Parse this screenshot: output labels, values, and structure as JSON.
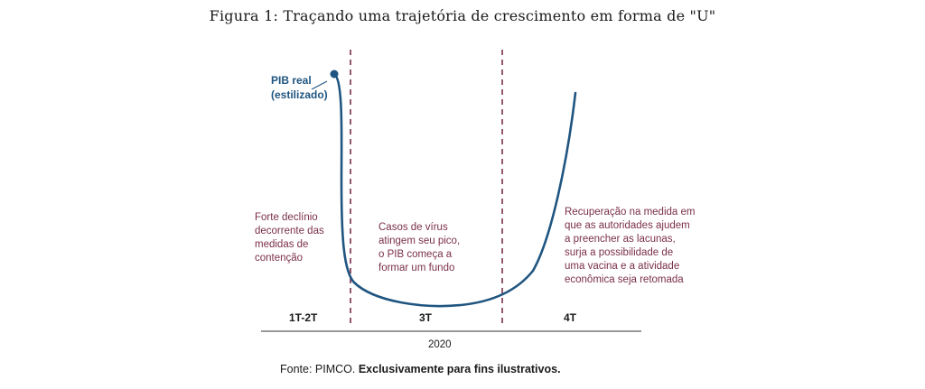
{
  "title": "Figura 1: Traçando uma trajetória de crescimento em forma de \"U\"",
  "chart_data": {
    "type": "line",
    "title": "Figura 1: Traçando uma trajetória de crescimento em forma de \"U\"",
    "xlabel": "2020",
    "ylabel": "",
    "x_ticks": [
      "1T-2T",
      "3T",
      "4T"
    ],
    "series": [
      {
        "name": "PIB real (estilizado)",
        "color": "#1f5580",
        "shape": "U",
        "note": "illustrative U-shaped curve, no numeric values shown"
      }
    ],
    "grid": false,
    "vertical_dividers": 2,
    "divider_color": "#7a2f4a"
  },
  "labels": {
    "series_label_line1": "PIB real",
    "series_label_line2": "(estilizado)",
    "annotation_left": [
      "Forte declínio",
      "decorrente das",
      "medidas de",
      "contenção"
    ],
    "annotation_middle": [
      "Casos de vírus",
      "atingem seu pico,",
      "o PIB começa a",
      "formar um fundo"
    ],
    "annotation_right": [
      "Recuperação na medida em",
      "que as autoridades ajudem",
      "a preencher as lacunas,",
      "surja a possibilidade de",
      "uma vacina e a atividade",
      "econômica seja retomada"
    ],
    "period_1": "1T-2T",
    "period_2": "3T",
    "period_3": "4T",
    "year": "2020"
  },
  "source": {
    "prefix": "Fonte: PIMCO. ",
    "bold": "Exclusivamente para fins ilustrativos."
  },
  "colors": {
    "curve": "#1f5580",
    "annotation": "#7a2f4a",
    "text": "#1a1a1a"
  }
}
